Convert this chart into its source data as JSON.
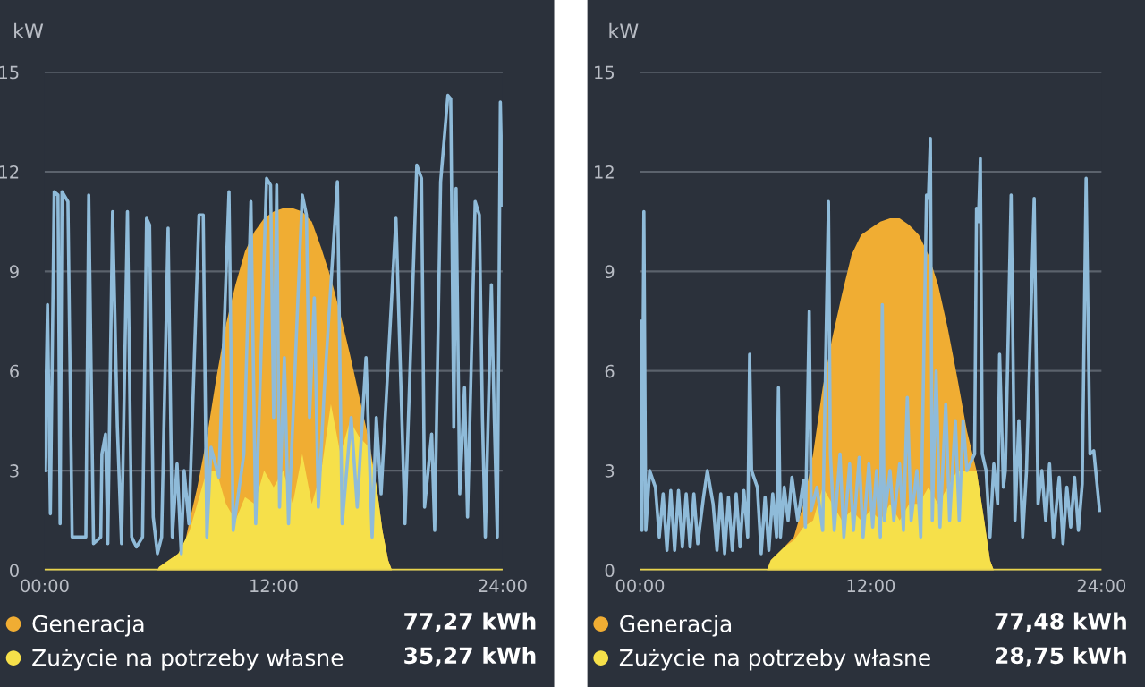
{
  "chart_data": [
    {
      "type": "area",
      "ylabel": "kW",
      "ylim": [
        0,
        15
      ],
      "yticks": [
        0,
        3,
        6,
        9,
        12,
        15
      ],
      "xlim": [
        0,
        24
      ],
      "xticks": [
        {
          "value": 0,
          "label": "00:00"
        },
        {
          "value": 12,
          "label": "12:00"
        },
        {
          "value": 24,
          "label": "24:00"
        }
      ],
      "grid": "y",
      "legend": "bottom",
      "annotations": [
        "77,27 kWh",
        "35,27 kWh"
      ],
      "series": [
        {
          "name": "Generacja",
          "color": "#f0ad33",
          "x": [
            0,
            5.9,
            6.0,
            6.5,
            7.0,
            7.3,
            7.6,
            8.0,
            8.5,
            9.0,
            9.5,
            10.0,
            10.5,
            11.0,
            11.5,
            12.0,
            12.5,
            13.0,
            13.5,
            14.0,
            14.5,
            15.0,
            15.5,
            16.0,
            16.5,
            17.0,
            17.4,
            17.7,
            18.0,
            18.2,
            24
          ],
          "values": [
            0,
            0,
            0.1,
            0.3,
            0.5,
            0.7,
            1.5,
            2.5,
            4.0,
            5.8,
            7.4,
            8.6,
            9.6,
            10.2,
            10.6,
            10.8,
            10.9,
            10.9,
            10.8,
            10.5,
            9.7,
            8.8,
            7.7,
            6.5,
            5.2,
            3.9,
            2.5,
            1.2,
            0.3,
            0,
            0
          ]
        },
        {
          "name": "Zużycie na potrzeby własne",
          "color": "#f6e04a",
          "x": [
            0,
            5.9,
            6.0,
            7.0,
            7.6,
            8.0,
            8.5,
            9.0,
            9.5,
            10.0,
            10.5,
            11.0,
            11.5,
            12.0,
            12.5,
            13.0,
            13.5,
            14.0,
            14.5,
            15.0,
            15.5,
            16.0,
            16.5,
            17.0,
            17.4,
            17.7,
            18.0,
            18.2,
            24
          ],
          "values": [
            0,
            0,
            0.1,
            0.5,
            1.2,
            2.0,
            3.0,
            3.0,
            2.0,
            1.5,
            2.2,
            2.0,
            3.0,
            2.5,
            3.0,
            2.0,
            3.5,
            2.0,
            3.0,
            5.0,
            3.5,
            4.5,
            4.0,
            3.7,
            2.5,
            1.2,
            0.3,
            0,
            0
          ]
        },
        {
          "type": "line",
          "color": "#8fbbd9",
          "x": [
            0.0,
            0.15,
            0.3,
            0.5,
            0.7,
            0.81,
            0.91,
            1.22,
            1.44,
            2.16,
            2.31,
            2.56,
            2.94,
            3.0,
            3.19,
            3.31,
            3.56,
            3.81,
            4.03,
            4.34,
            4.56,
            4.81,
            5.13,
            5.34,
            5.5,
            5.69,
            5.91,
            6.13,
            6.47,
            6.69,
            6.94,
            7.16,
            7.31,
            7.56,
            8.09,
            8.31,
            8.5,
            8.72,
            9.13,
            9.66,
            9.88,
            10.44,
            10.81,
            11.06,
            11.63,
            11.84,
            12.0,
            12.16,
            12.31,
            12.56,
            12.78,
            13.5,
            13.72,
            13.88,
            14.13,
            14.34,
            14.66,
            15.34,
            15.59,
            16.06,
            16.38,
            16.84,
            17.16,
            17.38,
            17.63,
            18.41,
            18.88,
            19.5,
            19.75,
            19.91,
            20.28,
            20.44,
            20.75,
            21.13,
            21.28,
            21.44,
            21.56,
            21.75,
            22.0,
            22.16,
            22.56,
            22.78,
            22.94,
            23.09,
            23.41,
            23.56,
            23.72,
            23.88,
            24.0
          ],
          "values": [
            3.0,
            8.0,
            1.7,
            11.4,
            11.3,
            1.4,
            11.4,
            11.1,
            1.0,
            1.0,
            11.3,
            0.8,
            1.0,
            3.5,
            4.1,
            0.8,
            10.8,
            4.3,
            0.8,
            10.8,
            1.0,
            0.7,
            1.0,
            10.6,
            10.4,
            1.6,
            0.5,
            1.0,
            10.3,
            1.0,
            3.2,
            0.5,
            3.0,
            1.4,
            10.7,
            10.7,
            1.0,
            3.7,
            2.8,
            11.4,
            1.2,
            3.5,
            11.1,
            1.4,
            11.8,
            11.6,
            4.6,
            11.6,
            1.9,
            6.4,
            1.4,
            11.3,
            10.7,
            4.6,
            8.2,
            1.9,
            5.5,
            11.7,
            1.4,
            4.6,
            1.9,
            6.4,
            1.0,
            4.6,
            2.3,
            10.6,
            1.4,
            12.2,
            11.8,
            1.9,
            4.1,
            1.2,
            11.7,
            14.3,
            14.2,
            4.3,
            11.5,
            2.3,
            5.5,
            1.6,
            11.1,
            10.7,
            4.6,
            1.0,
            8.6,
            4.6,
            1.0,
            14.1,
            11.0
          ]
        }
      ]
    },
    {
      "type": "area",
      "ylabel": "kW",
      "ylim": [
        0,
        15
      ],
      "yticks": [
        0,
        3,
        6,
        9,
        12,
        15
      ],
      "xlim": [
        0,
        24
      ],
      "xticks": [
        {
          "value": 0,
          "label": "00:00"
        },
        {
          "value": 12,
          "label": "12:00"
        },
        {
          "value": 24,
          "label": "24:00"
        }
      ],
      "grid": "y",
      "legend": "bottom",
      "annotations": [
        "77,48 kWh",
        "28,75 kWh"
      ],
      "series": [
        {
          "name": "Generacja",
          "color": "#f0ad33",
          "x": [
            0,
            6.6,
            6.8,
            7.5,
            8.0,
            8.5,
            9.0,
            9.5,
            10.0,
            10.5,
            11.0,
            11.5,
            12.0,
            12.5,
            13.0,
            13.5,
            14.0,
            14.5,
            15.0,
            15.5,
            16.0,
            16.5,
            17.0,
            17.5,
            17.9,
            18.2,
            18.4,
            24
          ],
          "values": [
            0,
            0,
            0.3,
            0.7,
            1.0,
            2.0,
            3.5,
            5.5,
            7.0,
            8.3,
            9.5,
            10.1,
            10.3,
            10.5,
            10.6,
            10.6,
            10.4,
            10.1,
            9.5,
            8.6,
            7.3,
            5.8,
            4.2,
            3.0,
            1.5,
            0.3,
            0,
            0
          ]
        },
        {
          "name": "Zużycie na potrzeby własne",
          "color": "#f6e04a",
          "x": [
            0,
            6.6,
            6.8,
            7.5,
            8.0,
            8.5,
            9.0,
            9.5,
            10.0,
            10.5,
            11.0,
            11.5,
            12.0,
            12.5,
            13.0,
            13.5,
            14.0,
            14.5,
            15.0,
            15.5,
            16.0,
            16.5,
            17.0,
            17.5,
            17.9,
            18.2,
            18.4,
            24
          ],
          "values": [
            0,
            0,
            0.3,
            0.7,
            0.9,
            1.3,
            1.5,
            2.5,
            2.0,
            1.5,
            1.8,
            1.5,
            1.8,
            1.5,
            2.0,
            1.5,
            2.0,
            2.0,
            2.5,
            2.0,
            2.5,
            3.0,
            3.0,
            3.0,
            1.5,
            0.3,
            0,
            0
          ]
        },
        {
          "type": "line",
          "color": "#8fbbd9",
          "x": [
            0,
            0.1,
            0.2,
            0.3,
            0.5,
            0.8,
            1.0,
            1.2,
            1.4,
            1.6,
            1.8,
            2.0,
            2.2,
            2.4,
            2.6,
            2.8,
            3.0,
            3.3,
            3.5,
            3.8,
            4.0,
            4.2,
            4.4,
            4.6,
            4.8,
            5.0,
            5.2,
            5.4,
            5.6,
            5.7,
            5.8,
            6.1,
            6.3,
            6.5,
            6.7,
            6.9,
            7.1,
            7.2,
            7.3,
            7.5,
            7.7,
            7.9,
            8.2,
            8.5,
            8.6,
            8.8,
            8.9,
            9.2,
            9.5,
            9.8,
            9.9,
            10.1,
            10.4,
            10.6,
            10.9,
            11.1,
            11.4,
            11.6,
            11.9,
            12.1,
            12.3,
            12.5,
            12.6,
            12.7,
            13.0,
            13.2,
            13.5,
            13.7,
            13.9,
            14.1,
            14.4,
            14.6,
            14.9,
            15.0,
            15.1,
            15.2,
            15.4,
            15.6,
            15.9,
            16.1,
            16.4,
            16.6,
            16.8,
            17.0,
            17.4,
            17.5,
            17.6,
            17.7,
            17.8,
            18.0,
            18.2,
            18.4,
            18.6,
            18.7,
            18.9,
            19.0,
            19.3,
            19.5,
            19.7,
            19.9,
            20.1,
            20.5,
            20.7,
            20.9,
            21.1,
            21.3,
            21.5,
            21.8,
            22.0,
            22.2,
            22.4,
            22.6,
            22.8,
            23.0,
            23.2,
            23.4,
            23.6,
            23.9
          ],
          "values": [
            7.5,
            1.2,
            10.8,
            1.2,
            3.0,
            2.5,
            1.0,
            2.3,
            0.6,
            2.4,
            0.6,
            2.4,
            0.7,
            2.3,
            0.7,
            2.3,
            0.8,
            2.2,
            3.0,
            2.0,
            0.6,
            2.3,
            0.5,
            2.2,
            0.6,
            2.3,
            0.7,
            2.4,
            1.0,
            6.5,
            3.0,
            2.5,
            0.5,
            2.2,
            0.6,
            2.3,
            1.0,
            5.5,
            1.0,
            2.5,
            1.5,
            2.8,
            1.5,
            2.7,
            1.3,
            7.8,
            1.8,
            2.5,
            1.2,
            11.1,
            3.5,
            1.2,
            3.5,
            1.0,
            3.2,
            1.2,
            3.4,
            1.0,
            3.2,
            1.3,
            3.0,
            1.0,
            8.0,
            1.5,
            3.0,
            1.5,
            3.2,
            1.2,
            5.2,
            1.5,
            3.0,
            1.0,
            11.3,
            11.2,
            13.0,
            1.5,
            6.0,
            1.3,
            5.0,
            1.5,
            4.5,
            1.5,
            4.5,
            3.0,
            3.5,
            10.9,
            10.5,
            12.4,
            3.5,
            3.0,
            1.0,
            3.2,
            2.0,
            6.5,
            2.5,
            3.0,
            11.3,
            1.5,
            4.5,
            1.0,
            3.0,
            11.2,
            2.0,
            3.0,
            1.5,
            3.2,
            1.0,
            2.8,
            0.8,
            2.5,
            1.3,
            2.8,
            1.2,
            2.6,
            11.8,
            3.5,
            3.6,
            1.8
          ]
        }
      ]
    }
  ]
}
